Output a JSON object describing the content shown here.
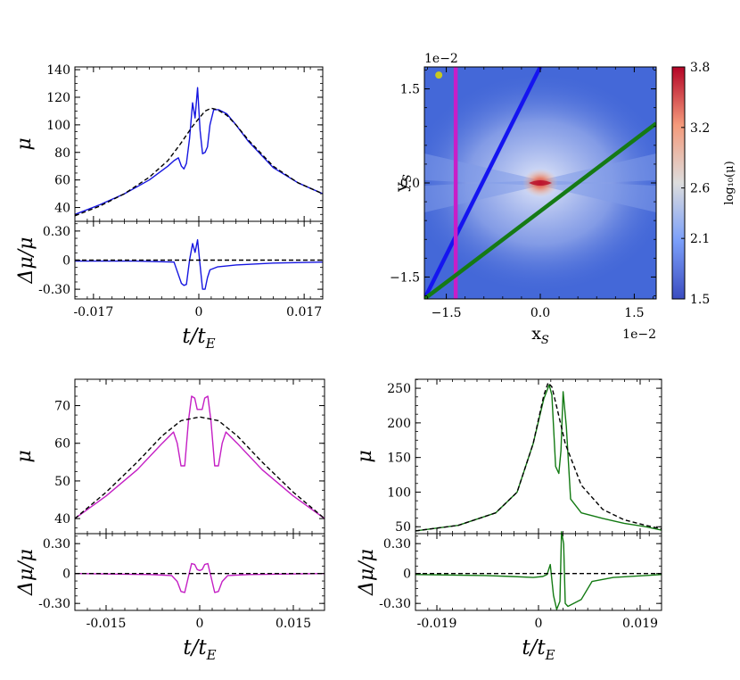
{
  "colors": {
    "blue": "#1515e0",
    "magenta": "#c41ec4",
    "green": "#137a13",
    "dash": "#000000",
    "map_bg": "#4468d8",
    "map_hot": "#d8283a"
  },
  "labels": {
    "mu": "μ",
    "dmu": "Δμ/μ",
    "time_t": "t",
    "time_slash": "/",
    "time_tE": "t",
    "time_E": "E"
  },
  "chart_data": [
    {
      "id": "top-left",
      "type": "line",
      "upper": {
        "ylabel": "μ",
        "xlim": [
          -0.02,
          0.02
        ],
        "ylim": [
          30,
          142
        ],
        "yticks": [
          40,
          60,
          80,
          100,
          120,
          140
        ],
        "ytick_labels": [
          "40",
          "60",
          "80",
          "100",
          "120",
          "140"
        ],
        "series": [
          {
            "name": "perturbed",
            "style": "solid",
            "color": "#1515e0",
            "x": [
              -0.02,
              -0.016,
              -0.012,
              -0.008,
              -0.005,
              -0.004,
              -0.0033,
              -0.0028,
              -0.0024,
              -0.002,
              -0.0015,
              -0.001,
              -0.0006,
              -0.0002,
              0.0002,
              0.0006,
              0.001,
              0.0014,
              0.0018,
              0.0024,
              0.0032,
              0.0045,
              0.006,
              0.008,
              0.012,
              0.016,
              0.02
            ],
            "y": [
              35,
              42,
              50,
              60,
              70,
              74,
              76,
              70,
              68,
              72,
              90,
              116,
              105,
              127,
              96,
              79,
              80,
              84,
              100,
              111,
              111,
              108,
              100,
              88,
              69,
              58,
              50
            ]
          },
          {
            "name": "smooth",
            "style": "dashed",
            "color": "#000000",
            "x": [
              -0.02,
              -0.016,
              -0.012,
              -0.008,
              -0.005,
              -0.003,
              -0.001,
              0.001,
              0.002,
              0.003,
              0.0045,
              0.006,
              0.008,
              0.012,
              0.016,
              0.02
            ],
            "y": [
              34,
              41,
              50,
              62,
              74,
              86,
              99,
              110,
              112,
              111,
              107,
              100,
              89,
              70,
              58,
              50
            ]
          }
        ]
      },
      "lower": {
        "ylabel": "Δμ/μ",
        "ylim": [
          -0.4,
          0.4
        ],
        "yticks": [
          -0.3,
          0,
          0.3
        ],
        "ytick_labels": [
          "-0.30",
          "0",
          "0.30"
        ],
        "series": [
          {
            "name": "residual",
            "style": "solid",
            "color": "#1515e0",
            "x": [
              -0.02,
              -0.01,
              -0.004,
              -0.0033,
              -0.0028,
              -0.0024,
              -0.002,
              -0.0015,
              -0.001,
              -0.0006,
              -0.0002,
              0.0002,
              0.0006,
              0.001,
              0.0014,
              0.0018,
              0.003,
              0.006,
              0.012,
              0.02
            ],
            "y": [
              -0.01,
              -0.01,
              -0.02,
              -0.15,
              -0.24,
              -0.26,
              -0.25,
              0.0,
              0.17,
              0.08,
              0.21,
              -0.05,
              -0.3,
              -0.3,
              -0.18,
              -0.1,
              -0.07,
              -0.05,
              -0.03,
              -0.02
            ]
          },
          {
            "name": "zero",
            "style": "dashed",
            "color": "#000000",
            "x": [
              -0.02,
              0.02
            ],
            "y": [
              0,
              0
            ]
          }
        ]
      },
      "xticks": [
        -0.017,
        0,
        0.017
      ],
      "xtick_labels": [
        "-0.017",
        "0",
        "0.017"
      ]
    },
    {
      "id": "top-right",
      "type": "heatmap",
      "xlabel": "x",
      "xlabel_sub": "S",
      "ylabel": "y",
      "ylabel_sub": "S",
      "xlim": [
        -1.85,
        1.85
      ],
      "ylim": [
        -1.85,
        1.85
      ],
      "xticks": [
        -1.5,
        0.0,
        1.5
      ],
      "xtick_labels": [
        "−1.5",
        "0.0",
        "1.5"
      ],
      "yticks": [
        -1.5,
        0.0,
        1.5
      ],
      "ytick_labels": [
        "−1.5",
        "0.0",
        "1.5"
      ],
      "x_scale_label": "1e−2",
      "y_scale_label": "1e−2",
      "colorbar": {
        "label": "log₁₀(μ)",
        "range": [
          1.5,
          3.8
        ],
        "ticks": [
          1.5,
          2.1,
          2.6,
          3.2,
          3.8
        ],
        "tick_labels": [
          "1.5",
          "2.1",
          "2.6",
          "3.2",
          "3.8"
        ]
      },
      "tracks": [
        {
          "name": "blue-track",
          "color": "#1515f0",
          "x1": -1.85,
          "y1": -1.85,
          "x2": 0.0,
          "y2": 1.85
        },
        {
          "name": "magenta-track",
          "color": "#c81ec8",
          "x1": -1.35,
          "y1": -1.85,
          "x2": -1.35,
          "y2": 1.85
        },
        {
          "name": "green-track",
          "color": "#157a15",
          "x1": -1.85,
          "y1": -1.85,
          "x2": 1.85,
          "y2": 0.95
        }
      ],
      "marker": {
        "name": "source-dot",
        "color": "#c8c820",
        "x": -1.62,
        "y": 1.72
      },
      "caustic_center": {
        "x": 0.0,
        "y": 0.0
      }
    },
    {
      "id": "bottom-left",
      "type": "line",
      "upper": {
        "ylabel": "μ",
        "xlim": [
          -0.02,
          0.02
        ],
        "ylim": [
          36,
          77
        ],
        "yticks": [
          40,
          50,
          60,
          70
        ],
        "ytick_labels": [
          "40",
          "50",
          "60",
          "70"
        ],
        "series": [
          {
            "name": "perturbed",
            "style": "solid",
            "color": "#c41ec4",
            "x": [
              -0.02,
              -0.015,
              -0.01,
              -0.006,
              -0.0042,
              -0.0036,
              -0.003,
              -0.0024,
              -0.0018,
              -0.0013,
              -0.0008,
              -0.0004,
              0.0,
              0.0004,
              0.0008,
              0.0013,
              0.0018,
              0.0024,
              0.003,
              0.0036,
              0.0042,
              0.006,
              0.01,
              0.015,
              0.02
            ],
            "y": [
              40,
              46,
              53,
              60,
              63,
              60,
              54,
              54,
              66,
              72.5,
              72,
              69,
              69,
              69,
              72,
              72.5,
              66,
              54,
              54,
              60,
              63,
              60,
              53,
              46,
              40
            ]
          },
          {
            "name": "smooth",
            "style": "dashed",
            "color": "#000000",
            "x": [
              -0.02,
              -0.015,
              -0.01,
              -0.006,
              -0.003,
              0.0,
              0.003,
              0.006,
              0.01,
              0.015,
              0.02
            ],
            "y": [
              40,
              47,
              55,
              62,
              66,
              67,
              66,
              62,
              55,
              47,
              40
            ]
          }
        ]
      },
      "lower": {
        "ylabel": "Δμ/μ",
        "ylim": [
          -0.37,
          0.4
        ],
        "yticks": [
          -0.3,
          0,
          0.3
        ],
        "ytick_labels": [
          "-0.30",
          "0",
          "0.30"
        ],
        "series": [
          {
            "name": "residual",
            "style": "solid",
            "color": "#c41ec4",
            "x": [
              -0.02,
              -0.008,
              -0.0045,
              -0.0036,
              -0.003,
              -0.0024,
              -0.0018,
              -0.0013,
              -0.0008,
              -0.0004,
              0.0,
              0.0004,
              0.0008,
              0.0013,
              0.0018,
              0.0024,
              0.003,
              0.0036,
              0.0045,
              0.008,
              0.02
            ],
            "y": [
              0.0,
              -0.01,
              -0.02,
              -0.08,
              -0.18,
              -0.19,
              -0.03,
              0.1,
              0.09,
              0.04,
              0.03,
              0.04,
              0.09,
              0.1,
              -0.03,
              -0.19,
              -0.18,
              -0.08,
              -0.02,
              -0.01,
              0.0
            ]
          },
          {
            "name": "zero",
            "style": "dashed",
            "color": "#000000",
            "x": [
              -0.02,
              0.02
            ],
            "y": [
              0,
              0
            ]
          }
        ]
      },
      "xticks": [
        -0.015,
        0,
        0.015
      ],
      "xtick_labels": [
        "-0.015",
        "0",
        "0.015"
      ]
    },
    {
      "id": "bottom-right",
      "type": "line",
      "upper": {
        "ylabel": "μ",
        "xlim": [
          -0.023,
          0.023
        ],
        "ylim": [
          40,
          263
        ],
        "yticks": [
          50,
          100,
          150,
          200,
          250
        ],
        "ytick_labels": [
          "50",
          "100",
          "150",
          "200",
          "250"
        ],
        "series": [
          {
            "name": "perturbed",
            "style": "solid",
            "color": "#137a13",
            "x": [
              -0.023,
              -0.015,
              -0.008,
              -0.004,
              -0.001,
              0.001,
              0.002,
              0.0025,
              0.0032,
              0.0038,
              0.0042,
              0.0046,
              0.0052,
              0.006,
              0.008,
              0.012,
              0.016,
              0.02,
              0.023
            ],
            "y": [
              44,
              52,
              70,
              100,
              170,
              235,
              255,
              240,
              137,
              127,
              160,
              245,
              195,
              90,
              70,
              62,
              55,
              50,
              45
            ]
          },
          {
            "name": "smooth",
            "style": "dashed",
            "color": "#000000",
            "x": [
              -0.023,
              -0.015,
              -0.008,
              -0.004,
              -0.001,
              0.001,
              0.0018,
              0.0025,
              0.0035,
              0.005,
              0.008,
              0.012,
              0.016,
              0.02,
              0.023
            ],
            "y": [
              44,
              52,
              70,
              100,
              170,
              240,
              258,
              252,
              220,
              170,
              110,
              75,
              60,
              52,
              47
            ]
          }
        ]
      },
      "lower": {
        "ylabel": "Δμ/μ",
        "ylim": [
          -0.37,
          0.4
        ],
        "yticks": [
          -0.3,
          0,
          0.3
        ],
        "ytick_labels": [
          "-0.30",
          "0",
          "0.30"
        ],
        "series": [
          {
            "name": "residual",
            "style": "solid",
            "color": "#137a13",
            "x": [
              -0.023,
              -0.01,
              -0.005,
              -0.001,
              0.0008,
              0.0016,
              0.0022,
              0.0028,
              0.0034,
              0.004,
              0.0043,
              0.0047,
              0.005,
              0.0055,
              0.008,
              0.01,
              0.014,
              0.02,
              0.023
            ],
            "y": [
              -0.01,
              -0.02,
              -0.03,
              -0.04,
              -0.03,
              -0.01,
              0.09,
              -0.22,
              -0.36,
              -0.28,
              0.42,
              0.3,
              -0.3,
              -0.33,
              -0.26,
              -0.08,
              -0.04,
              -0.02,
              -0.01
            ]
          },
          {
            "name": "zero",
            "style": "dashed",
            "color": "#000000",
            "x": [
              -0.023,
              0.023
            ],
            "y": [
              0,
              0
            ]
          }
        ]
      },
      "xticks": [
        -0.019,
        0,
        0.019
      ],
      "xtick_labels": [
        "-0.019",
        "0",
        "0.019"
      ]
    }
  ]
}
